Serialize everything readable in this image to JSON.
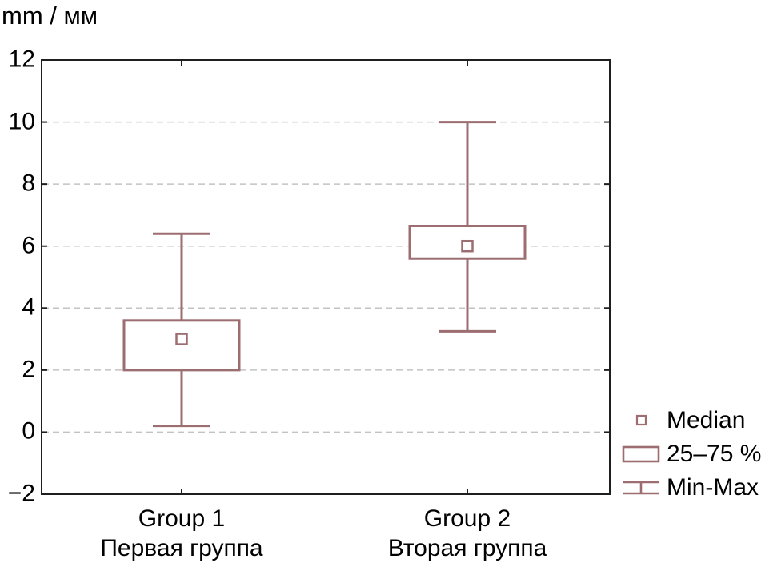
{
  "colors": {
    "box": "#9d6e71",
    "grid": "#c3c3c3",
    "axis": "#1f1f1f",
    "background": "#ffffff"
  },
  "chart_data": {
    "type": "boxplot",
    "title": "mm / мм",
    "ylabel": "mm / мм",
    "xlabel": "",
    "ylim": [
      -2,
      12
    ],
    "ytick_step": 2,
    "yticks": [
      12,
      10,
      8,
      6,
      4,
      2,
      0,
      -2
    ],
    "ytick_labels": [
      "12",
      "10",
      "8",
      "6",
      "4",
      "2",
      "0",
      "−2"
    ],
    "grid": "horizontal dashed gray lines at interior ticks (0,2,4,6,8,10)",
    "legend_position": "outside bottom-right",
    "categories": [
      "Group 1",
      "Group 2"
    ],
    "groups": [
      {
        "label_en": "Group 1",
        "label_ru": "Первая группа",
        "min": 0.2,
        "q1": 2.0,
        "median": 3.0,
        "q3": 3.6,
        "max": 6.4
      },
      {
        "label_en": "Group 2",
        "label_ru": "Вторая группа",
        "min": 3.25,
        "q1": 5.6,
        "median": 6.0,
        "q3": 6.65,
        "max": 10.0
      }
    ]
  },
  "legend": {
    "items": [
      {
        "symbol": "median-square",
        "label": "Median"
      },
      {
        "symbol": "box-25-75",
        "label": "25–75 %"
      },
      {
        "symbol": "min-max-whisker",
        "label": "Min-Max"
      }
    ]
  }
}
